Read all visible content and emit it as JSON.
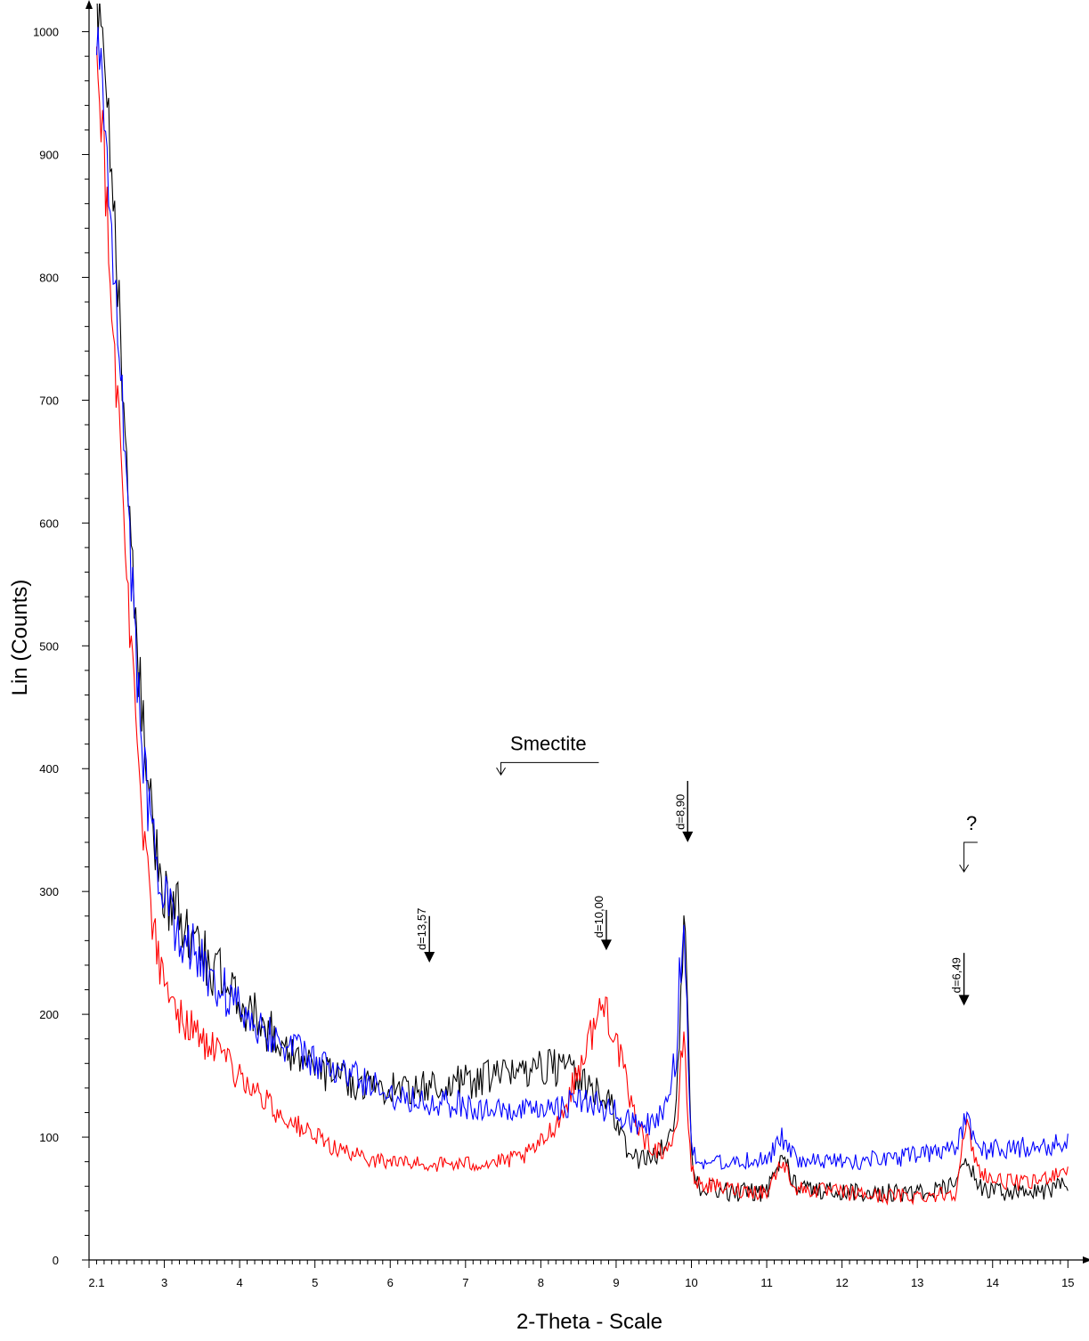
{
  "chart_data": {
    "type": "line",
    "xlabel": "2-Theta - Scale",
    "ylabel": "Lin (Counts)",
    "xlim": [
      2.0,
      15.15
    ],
    "ylim": [
      0,
      1020
    ],
    "x_ticks": [
      {
        "value": 2.1,
        "label": "2.1"
      },
      {
        "value": 3,
        "label": "3"
      },
      {
        "value": 4,
        "label": "4"
      },
      {
        "value": 5,
        "label": "5"
      },
      {
        "value": 6,
        "label": "6"
      },
      {
        "value": 7,
        "label": "7"
      },
      {
        "value": 8,
        "label": "8"
      },
      {
        "value": 9,
        "label": "9"
      },
      {
        "value": 10,
        "label": "10"
      },
      {
        "value": 11,
        "label": "11"
      },
      {
        "value": 12,
        "label": "12"
      },
      {
        "value": 13,
        "label": "13"
      },
      {
        "value": 14,
        "label": "14"
      },
      {
        "value": 15,
        "label": "15"
      }
    ],
    "y_ticks": [
      {
        "value": 0,
        "label": "0"
      },
      {
        "value": 100,
        "label": "100"
      },
      {
        "value": 200,
        "label": "200"
      },
      {
        "value": 300,
        "label": "300"
      },
      {
        "value": 400,
        "label": "400"
      },
      {
        "value": 500,
        "label": "500"
      },
      {
        "value": 600,
        "label": "600"
      },
      {
        "value": 700,
        "label": "700"
      },
      {
        "value": 800,
        "label": "800"
      },
      {
        "value": 900,
        "label": "900"
      },
      {
        "value": 1000,
        "label": "1000"
      }
    ],
    "x_minor_step": 0.1,
    "y_minor_step": 20,
    "grid": false,
    "series": [
      {
        "color": "#000000",
        "x": [
          2.1,
          2.2,
          2.3,
          2.4,
          2.5,
          2.6,
          2.7,
          2.8,
          2.9,
          3.0,
          3.2,
          3.5,
          4.0,
          4.5,
          5.0,
          5.5,
          6.0,
          6.5,
          7.0,
          7.5,
          8.0,
          8.3,
          8.6,
          8.9,
          9.1,
          9.3,
          9.5,
          9.7,
          9.8,
          9.85,
          9.9,
          9.95,
          10.0,
          10.05,
          10.1,
          10.5,
          11.0,
          11.2,
          11.4,
          12.0,
          12.5,
          13.0,
          13.5,
          13.65,
          13.8,
          14.0,
          14.5,
          15.0
        ],
        "y": [
          1020,
          970,
          880,
          780,
          650,
          550,
          440,
          380,
          330,
          300,
          280,
          250,
          210,
          180,
          155,
          145,
          140,
          140,
          145,
          150,
          160,
          155,
          145,
          130,
          95,
          80,
          85,
          95,
          120,
          200,
          300,
          200,
          90,
          70,
          60,
          55,
          55,
          85,
          60,
          55,
          55,
          55,
          60,
          85,
          60,
          55,
          55,
          60
        ],
        "noise": 14
      },
      {
        "color": "#0000ff",
        "x": [
          2.1,
          2.2,
          2.3,
          2.4,
          2.5,
          2.6,
          2.7,
          2.8,
          2.9,
          3.0,
          3.2,
          3.5,
          4.0,
          4.5,
          5.0,
          5.5,
          6.0,
          6.5,
          7.0,
          7.5,
          8.0,
          8.5,
          9.0,
          9.3,
          9.5,
          9.7,
          9.8,
          9.85,
          9.9,
          9.95,
          10.0,
          10.05,
          10.1,
          10.5,
          11.0,
          11.2,
          11.4,
          12.0,
          12.5,
          13.0,
          13.5,
          13.65,
          13.8,
          14.0,
          14.5,
          15.0
        ],
        "y": [
          1000,
          940,
          840,
          750,
          620,
          520,
          420,
          360,
          320,
          290,
          270,
          240,
          205,
          180,
          160,
          150,
          135,
          130,
          125,
          120,
          120,
          130,
          120,
          110,
          110,
          130,
          170,
          240,
          270,
          180,
          95,
          85,
          80,
          80,
          82,
          100,
          80,
          80,
          82,
          85,
          90,
          115,
          90,
          90,
          92,
          95
        ],
        "noise": 13
      },
      {
        "color": "#ff0000",
        "x": [
          2.1,
          2.2,
          2.3,
          2.4,
          2.5,
          2.6,
          2.7,
          2.8,
          2.9,
          3.0,
          3.2,
          3.5,
          4.0,
          4.5,
          5.0,
          5.5,
          6.0,
          6.5,
          7.0,
          7.5,
          7.8,
          8.0,
          8.3,
          8.5,
          8.7,
          8.85,
          9.0,
          9.2,
          9.4,
          9.6,
          9.8,
          9.85,
          9.9,
          9.95,
          10.0,
          10.05,
          10.1,
          10.5,
          11.0,
          11.2,
          11.4,
          12.0,
          12.5,
          13.0,
          13.5,
          13.65,
          13.8,
          14.0,
          14.5,
          15.0
        ],
        "y": [
          990,
          900,
          780,
          680,
          560,
          460,
          370,
          300,
          250,
          220,
          200,
          180,
          150,
          120,
          100,
          85,
          80,
          78,
          78,
          80,
          85,
          95,
          120,
          155,
          190,
          210,
          180,
          125,
          95,
          88,
          100,
          150,
          190,
          120,
          75,
          65,
          62,
          58,
          55,
          80,
          58,
          55,
          52,
          52,
          55,
          110,
          75,
          65,
          62,
          75
        ],
        "noise": 12
      }
    ],
    "annotations": [
      {
        "kind": "d-marker",
        "text": "d=13,57",
        "x": 6.52,
        "y_top": 280,
        "y_tip": 245
      },
      {
        "kind": "d-marker",
        "text": "d=10,00",
        "x": 8.87,
        "y_top": 285,
        "y_tip": 255
      },
      {
        "kind": "d-marker",
        "text": "d=8,90",
        "x": 9.95,
        "y_top": 390,
        "y_tip": 343
      },
      {
        "kind": "d-marker",
        "text": "d=6,49",
        "x": 13.62,
        "y_top": 250,
        "y_tip": 210
      },
      {
        "kind": "label-arrow",
        "text": "Smectite",
        "x_arrow": 7.47,
        "x_end": 8.77,
        "y_line": 405,
        "y_tip": 395,
        "text_x": 8.1,
        "text_y": 415
      },
      {
        "kind": "label-arrow",
        "text": "?",
        "x_arrow": 13.62,
        "x_end": 13.8,
        "y_line": 340,
        "y_tip": 316,
        "text_x": 13.72,
        "text_y": 350
      }
    ]
  }
}
